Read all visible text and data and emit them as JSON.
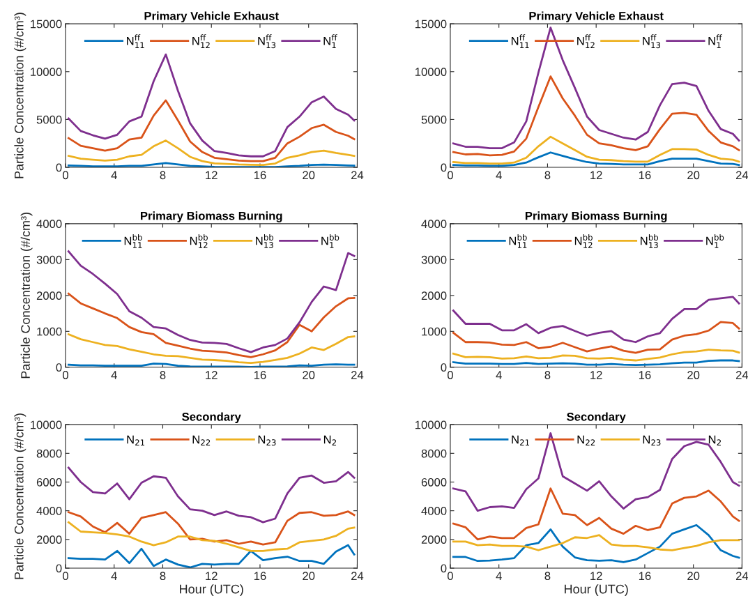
{
  "chart_data": [
    {
      "type": "line",
      "title": "Primary Vehicle Exhaust",
      "ylabel": "Particle Concentration (#/cm³)",
      "legend": "top",
      "x": [
        0.25,
        1.25,
        2.25,
        3.25,
        4.25,
        5.25,
        6.25,
        7.25,
        8.25,
        9.25,
        10.25,
        11.25,
        12.25,
        13.25,
        14.25,
        15.25,
        16.25,
        17.25,
        18.25,
        19.25,
        20.25,
        21.25,
        22.25,
        23.25,
        23.75
      ],
      "xlim": [
        0,
        24
      ],
      "xticks": [
        0,
        4,
        8,
        12,
        16,
        20,
        24
      ],
      "ylim": [
        0,
        15000
      ],
      "yticks": [
        0,
        5000,
        10000,
        15000
      ],
      "series": [
        {
          "name": "N$^{ff}$$_{11}$",
          "color": "#0072bd",
          "values": [
            200,
            150,
            100,
            100,
            100,
            150,
            150,
            300,
            450,
            300,
            150,
            100,
            50,
            30,
            20,
            20,
            20,
            30,
            100,
            150,
            250,
            280,
            250,
            200,
            180
          ]
        },
        {
          "name": "N$^{ff}$$_{12}$",
          "color": "#d95319",
          "values": [
            3050,
            2250,
            2000,
            1750,
            2000,
            2900,
            3100,
            5400,
            7000,
            4900,
            2700,
            1600,
            1000,
            850,
            700,
            650,
            650,
            1000,
            2500,
            3200,
            4100,
            4450,
            3700,
            3300,
            2950
          ]
        },
        {
          "name": "N$^{ff}$$_{13}$",
          "color": "#edb120",
          "values": [
            1200,
            900,
            800,
            700,
            800,
            1150,
            1300,
            2200,
            2800,
            2000,
            1100,
            650,
            420,
            360,
            300,
            270,
            250,
            400,
            1000,
            1250,
            1600,
            1750,
            1500,
            1300,
            1200
          ]
        },
        {
          "name": "N$^{ff}$$_{1}$",
          "color": "#7e2f8e",
          "values": [
            5100,
            3800,
            3350,
            3000,
            3400,
            4800,
            5300,
            9000,
            11800,
            8000,
            4600,
            2800,
            1700,
            1500,
            1250,
            1150,
            1150,
            1700,
            4200,
            5300,
            6800,
            7400,
            6100,
            5500,
            4900
          ]
        }
      ]
    },
    {
      "type": "line",
      "title": "Primary Vehicle Exhaust",
      "legend": "top",
      "x": [
        0.25,
        1.25,
        2.25,
        3.25,
        4.25,
        5.25,
        6.25,
        7.25,
        8.25,
        9.25,
        10.25,
        11.25,
        12.25,
        13.25,
        14.25,
        15.25,
        16.25,
        17.25,
        18.25,
        19.25,
        20.25,
        21.25,
        22.25,
        23.25,
        23.75
      ],
      "xlim": [
        0,
        24
      ],
      "xticks": [
        0,
        4,
        8,
        12,
        16,
        20,
        24
      ],
      "ylim": [
        0,
        15000
      ],
      "yticks": [
        0,
        5000,
        10000,
        15000
      ],
      "series": [
        {
          "name": "N$^{ff}$$_{11}$",
          "color": "#0072bd",
          "values": [
            250,
            200,
            200,
            150,
            150,
            250,
            500,
            1050,
            1550,
            1200,
            850,
            550,
            400,
            350,
            300,
            300,
            300,
            650,
            900,
            900,
            900,
            650,
            400,
            350,
            250
          ]
        },
        {
          "name": "N$^{ff}$$_{12}$",
          "color": "#d95319",
          "values": [
            1600,
            1350,
            1400,
            1250,
            1300,
            1650,
            3000,
            6300,
            9500,
            7200,
            5400,
            3400,
            2500,
            2300,
            2000,
            1800,
            2200,
            4000,
            5600,
            5700,
            5500,
            3800,
            2600,
            2200,
            1800
          ]
        },
        {
          "name": "N$^{ff}$$_{13}$",
          "color": "#edb120",
          "values": [
            550,
            450,
            450,
            400,
            400,
            500,
            1000,
            2200,
            3200,
            2500,
            1800,
            1100,
            800,
            750,
            650,
            600,
            600,
            1300,
            1900,
            1900,
            1850,
            1300,
            900,
            800,
            600
          ]
        },
        {
          "name": "N$^{ff}$$_{1}$",
          "color": "#7e2f8e",
          "values": [
            2500,
            2150,
            2150,
            2000,
            2000,
            2600,
            4800,
            9900,
            14600,
            11200,
            8300,
            5300,
            3900,
            3500,
            3100,
            2900,
            3700,
            6500,
            8700,
            8850,
            8500,
            5900,
            4000,
            3500,
            2800
          ]
        }
      ]
    },
    {
      "type": "line",
      "title": "Primary Biomass Burning",
      "ylabel": "Particle Concentration (#/cm³)",
      "legend": "top",
      "x": [
        0.25,
        1.25,
        2.25,
        3.25,
        4.25,
        5.25,
        6.25,
        7.25,
        8.25,
        9.25,
        10.25,
        11.25,
        12.25,
        13.25,
        14.25,
        15.25,
        16.25,
        17.25,
        18.25,
        19.25,
        20.25,
        21.25,
        22.25,
        23.25,
        23.75
      ],
      "xlim": [
        0,
        24
      ],
      "xticks": [
        0,
        4,
        8,
        12,
        16,
        20,
        24
      ],
      "ylim": [
        0,
        4000
      ],
      "yticks": [
        0,
        1000,
        2000,
        3000,
        4000
      ],
      "series": [
        {
          "name": "N$^{bb}$$_{11}$",
          "color": "#0072bd",
          "values": [
            70,
            50,
            50,
            40,
            40,
            40,
            40,
            100,
            90,
            40,
            20,
            15,
            15,
            15,
            15,
            10,
            15,
            15,
            20,
            50,
            40,
            70,
            80,
            70,
            70
          ]
        },
        {
          "name": "N$^{bb}$$_{12}$",
          "color": "#d95319",
          "values": [
            2050,
            1780,
            1640,
            1500,
            1370,
            1120,
            980,
            920,
            680,
            600,
            520,
            460,
            440,
            410,
            340,
            280,
            360,
            470,
            700,
            1180,
            1000,
            1390,
            1700,
            1920,
            1930
          ]
        },
        {
          "name": "N$^{bb}$$_{13}$",
          "color": "#edb120",
          "values": [
            920,
            780,
            700,
            620,
            590,
            500,
            430,
            360,
            320,
            310,
            260,
            210,
            200,
            180,
            140,
            120,
            150,
            200,
            260,
            380,
            550,
            480,
            650,
            840,
            860
          ]
        },
        {
          "name": "N$^{bb}$$_{1}$",
          "color": "#7e2f8e",
          "values": [
            3230,
            2830,
            2600,
            2330,
            2040,
            1560,
            1380,
            1120,
            1080,
            900,
            760,
            690,
            680,
            650,
            530,
            420,
            550,
            620,
            800,
            1250,
            1820,
            2250,
            2150,
            3180,
            3100
          ]
        }
      ]
    },
    {
      "type": "line",
      "title": "Primary Biomass Burning",
      "legend": "top",
      "x": [
        0.25,
        1.25,
        2.25,
        3.25,
        4.25,
        5.25,
        6.25,
        7.25,
        8.25,
        9.25,
        10.25,
        11.25,
        12.25,
        13.25,
        14.25,
        15.25,
        16.25,
        17.25,
        18.25,
        19.25,
        20.25,
        21.25,
        22.25,
        23.25,
        23.75
      ],
      "xlim": [
        0,
        24
      ],
      "xticks": [
        0,
        4,
        8,
        12,
        16,
        20,
        24
      ],
      "ylim": [
        0,
        4000
      ],
      "yticks": [
        0,
        1000,
        2000,
        3000,
        4000
      ],
      "series": [
        {
          "name": "N$^{bb}$$_{11}$",
          "color": "#0072bd",
          "values": [
            140,
            100,
            100,
            100,
            90,
            90,
            120,
            90,
            100,
            110,
            100,
            70,
            70,
            90,
            70,
            60,
            70,
            80,
            110,
            130,
            130,
            180,
            190,
            190,
            170
          ]
        },
        {
          "name": "N$^{bb}$$_{12}$",
          "color": "#d95319",
          "values": [
            960,
            700,
            700,
            690,
            630,
            620,
            700,
            530,
            570,
            680,
            560,
            440,
            520,
            580,
            460,
            400,
            490,
            500,
            770,
            880,
            920,
            1020,
            1260,
            1230,
            1080
          ]
        },
        {
          "name": "N$^{bb}$$_{13}$",
          "color": "#edb120",
          "values": [
            380,
            280,
            290,
            280,
            240,
            250,
            300,
            250,
            260,
            330,
            320,
            250,
            240,
            260,
            210,
            190,
            230,
            270,
            360,
            420,
            440,
            490,
            470,
            460,
            410
          ]
        },
        {
          "name": "N$^{bb}$$_{1}$",
          "color": "#7e2f8e",
          "values": [
            1580,
            1210,
            1210,
            1210,
            1030,
            1030,
            1200,
            950,
            1100,
            1150,
            1010,
            880,
            960,
            1010,
            770,
            700,
            860,
            950,
            1350,
            1620,
            1620,
            1880,
            1920,
            1960,
            1780
          ]
        }
      ]
    },
    {
      "type": "line",
      "title": "Secondary",
      "xlabel": "Hour (UTC)",
      "ylabel": "Particle Concentration (#/cm³)",
      "legend": "top",
      "x": [
        0.25,
        1.25,
        2.25,
        3.25,
        4.25,
        5.25,
        6.25,
        7.25,
        8.25,
        9.25,
        10.25,
        11.25,
        12.25,
        13.25,
        14.25,
        15.25,
        16.25,
        17.25,
        18.25,
        19.25,
        20.25,
        21.25,
        22.25,
        23.25,
        23.75
      ],
      "xlim": [
        0,
        24
      ],
      "xticks": [
        0,
        4,
        8,
        12,
        16,
        20,
        24
      ],
      "ylim": [
        0,
        10000
      ],
      "yticks": [
        0,
        2000,
        4000,
        6000,
        8000,
        10000
      ],
      "series": [
        {
          "name": "N$_{21}$",
          "color": "#0072bd",
          "values": [
            700,
            650,
            650,
            600,
            1200,
            350,
            1350,
            150,
            600,
            250,
            50,
            300,
            250,
            300,
            300,
            1200,
            550,
            700,
            800,
            500,
            500,
            300,
            1150,
            1600,
            950
          ]
        },
        {
          "name": "N$_{22}$",
          "color": "#d95319",
          "values": [
            3900,
            3600,
            2900,
            2500,
            3150,
            2400,
            3500,
            3700,
            3900,
            3100,
            2000,
            2050,
            1850,
            1950,
            1700,
            1850,
            1650,
            1800,
            3300,
            3850,
            3900,
            3650,
            3700,
            3950,
            3700
          ]
        },
        {
          "name": "N$_{23}$",
          "color": "#edb120",
          "values": [
            3200,
            2550,
            2500,
            2450,
            2350,
            2200,
            1850,
            1600,
            1800,
            2200,
            2200,
            1950,
            1900,
            1700,
            1450,
            1200,
            1200,
            1300,
            1350,
            1800,
            1900,
            2000,
            2250,
            2750,
            2820
          ]
        },
        {
          "name": "N$_{2}$",
          "color": "#7e2f8e",
          "values": [
            7000,
            6000,
            5300,
            5200,
            5900,
            4800,
            5950,
            6400,
            6300,
            5000,
            4100,
            4000,
            3700,
            3950,
            3650,
            3550,
            3200,
            3450,
            5200,
            6300,
            6450,
            5950,
            6050,
            6700,
            6300
          ]
        }
      ]
    },
    {
      "type": "line",
      "title": "Secondary",
      "xlabel": "Hour (UTC)",
      "legend": "top",
      "x": [
        0.25,
        1.25,
        2.25,
        3.25,
        4.25,
        5.25,
        6.25,
        7.25,
        8.25,
        9.25,
        10.25,
        11.25,
        12.25,
        13.25,
        14.25,
        15.25,
        16.25,
        17.25,
        18.25,
        19.25,
        20.25,
        21.25,
        22.25,
        23.25,
        23.75
      ],
      "xlim": [
        0,
        24
      ],
      "xticks": [
        0,
        4,
        8,
        12,
        16,
        20,
        24
      ],
      "ylim": [
        0,
        10000
      ],
      "yticks": [
        0,
        2000,
        4000,
        6000,
        8000,
        10000
      ],
      "series": [
        {
          "name": "N$_{21}$",
          "color": "#0072bd",
          "values": [
            780,
            780,
            500,
            530,
            600,
            700,
            1600,
            1750,
            2700,
            1500,
            750,
            550,
            520,
            550,
            420,
            600,
            1050,
            1500,
            2400,
            2700,
            3000,
            2300,
            1250,
            850,
            730
          ]
        },
        {
          "name": "N$_{22}$",
          "color": "#d95319",
          "values": [
            3100,
            2850,
            2000,
            2200,
            2100,
            2100,
            2800,
            3050,
            5550,
            3800,
            3700,
            3000,
            3500,
            2750,
            2400,
            2950,
            2650,
            2850,
            4500,
            4900,
            5000,
            5400,
            4650,
            3600,
            3300
          ]
        },
        {
          "name": "N$_{23}$",
          "color": "#edb120",
          "values": [
            1850,
            1850,
            1600,
            1650,
            1550,
            1550,
            1500,
            1250,
            1500,
            1750,
            2150,
            2100,
            2300,
            1650,
            1550,
            1550,
            1450,
            1300,
            1250,
            1400,
            1550,
            1800,
            1950,
            1950,
            1950
          ]
        },
        {
          "name": "N$_{2}$",
          "color": "#7e2f8e",
          "values": [
            5550,
            5350,
            4000,
            4250,
            4300,
            4200,
            5500,
            6250,
            9400,
            6400,
            5900,
            5400,
            6050,
            5000,
            4150,
            4800,
            4950,
            5450,
            7600,
            8500,
            8800,
            8600,
            7400,
            6000,
            5750
          ]
        }
      ]
    }
  ]
}
